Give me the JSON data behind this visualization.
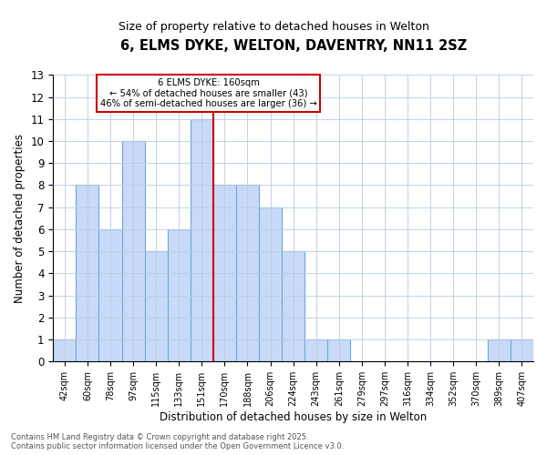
{
  "title": "6, ELMS DYKE, WELTON, DAVENTRY, NN11 2SZ",
  "subtitle": "Size of property relative to detached houses in Welton",
  "xlabel": "Distribution of detached houses by size in Welton",
  "ylabel": "Number of detached properties",
  "bar_color": "#c9daf8",
  "bar_edge_color": "#6fa8dc",
  "categories": [
    "42sqm",
    "60sqm",
    "78sqm",
    "97sqm",
    "115sqm",
    "133sqm",
    "151sqm",
    "170sqm",
    "188sqm",
    "206sqm",
    "224sqm",
    "243sqm",
    "261sqm",
    "279sqm",
    "297sqm",
    "316sqm",
    "334sqm",
    "352sqm",
    "370sqm",
    "389sqm",
    "407sqm"
  ],
  "values": [
    1,
    8,
    6,
    10,
    5,
    6,
    11,
    8,
    8,
    7,
    5,
    1,
    1,
    0,
    0,
    0,
    0,
    0,
    0,
    1,
    1
  ],
  "ylim": [
    0,
    13
  ],
  "yticks": [
    0,
    1,
    2,
    3,
    4,
    5,
    6,
    7,
    8,
    9,
    10,
    11,
    12,
    13
  ],
  "vline_index": 6.5,
  "property_line_label": "6 ELMS DYKE: 160sqm",
  "annotation_line1": "← 54% of detached houses are smaller (43)",
  "annotation_line2": "46% of semi-detached houses are larger (36) →",
  "vline_color": "#cc0000",
  "annotation_box_color": "#ffffff",
  "annotation_box_edge": "#cc0000",
  "grid_color": "#b8cce4",
  "background_color": "#ffffff",
  "footer_line1": "Contains HM Land Registry data © Crown copyright and database right 2025.",
  "footer_line2": "Contains public sector information licensed under the Open Government Licence v3.0."
}
